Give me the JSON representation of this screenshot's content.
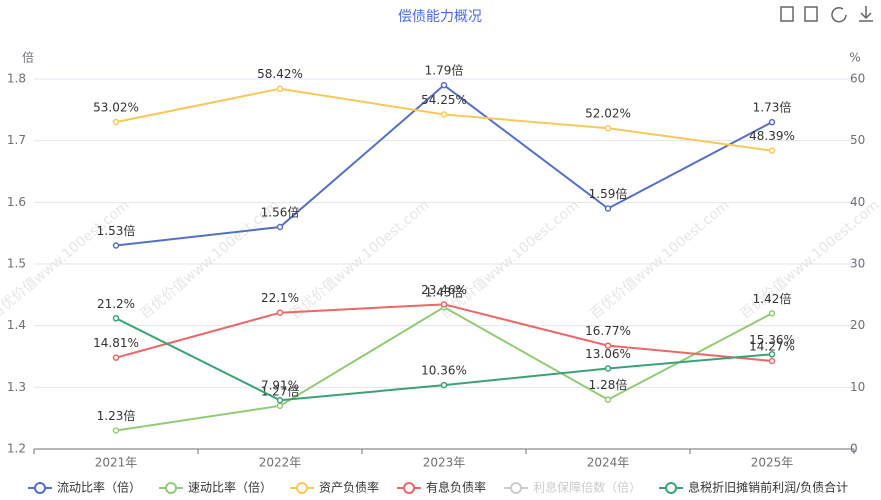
{
  "chart_data": {
    "type": "line",
    "title": "偿债能力概况",
    "y_unit": "倍",
    "y2_unit": "%",
    "watermark": "百优价值www.100est.com",
    "categories": [
      "2021年",
      "2022年",
      "2023年",
      "2024年",
      "2025年"
    ],
    "ylim": [
      1.2,
      1.8
    ],
    "yticks": [
      1.2,
      1.3,
      1.4,
      1.5,
      1.6,
      1.7,
      1.8
    ],
    "y2lim": [
      0,
      60
    ],
    "y2ticks": [
      0,
      10,
      20,
      30,
      40,
      50,
      60
    ],
    "grid": true,
    "legend": "bottom",
    "series": [
      {
        "name": "流动比率（倍）",
        "color": "#5470c6",
        "values": [
          1.53,
          1.56,
          1.79,
          1.59,
          1.73
        ],
        "value_labels": [
          "1.53倍",
          "1.56倍",
          "1.79倍",
          "1.59倍",
          "1.73倍"
        ]
      },
      {
        "name": "速动比率（倍）",
        "color": "#91cc75",
        "values": [
          1.23,
          1.27,
          1.43,
          1.28,
          1.42
        ],
        "value_labels": [
          "1.23倍",
          "1.27倍",
          "1.43倍",
          "1.28倍",
          "1.42倍"
        ]
      },
      {
        "name": "资产负债率",
        "color": "#fac858",
        "axis": "y2",
        "values": [
          53.02,
          58.42,
          54.25,
          52.02,
          48.39
        ],
        "value_labels": [
          "53.02%",
          "58.42%",
          "54.25%",
          "52.02%",
          "48.39%"
        ]
      },
      {
        "name": "有息负债率",
        "color": "#ee6666",
        "axis": "y2",
        "values": [
          14.81,
          22.1,
          23.46,
          16.77,
          14.27
        ],
        "value_labels": [
          "14.81%",
          "22.1%",
          "23.46%",
          "16.77%",
          "14.27%"
        ]
      },
      {
        "name": "利息保障倍数（倍）",
        "color": "#cccccc",
        "visible": false
      },
      {
        "name": "息税折旧摊销前利润/负债合计",
        "color": "#3ba272",
        "axis": "y2",
        "values": [
          21.2,
          7.91,
          10.36,
          13.06,
          15.36
        ],
        "value_labels": [
          "21.2%",
          "7.91%",
          "10.36%",
          "13.06%",
          "15.36%"
        ]
      }
    ]
  }
}
